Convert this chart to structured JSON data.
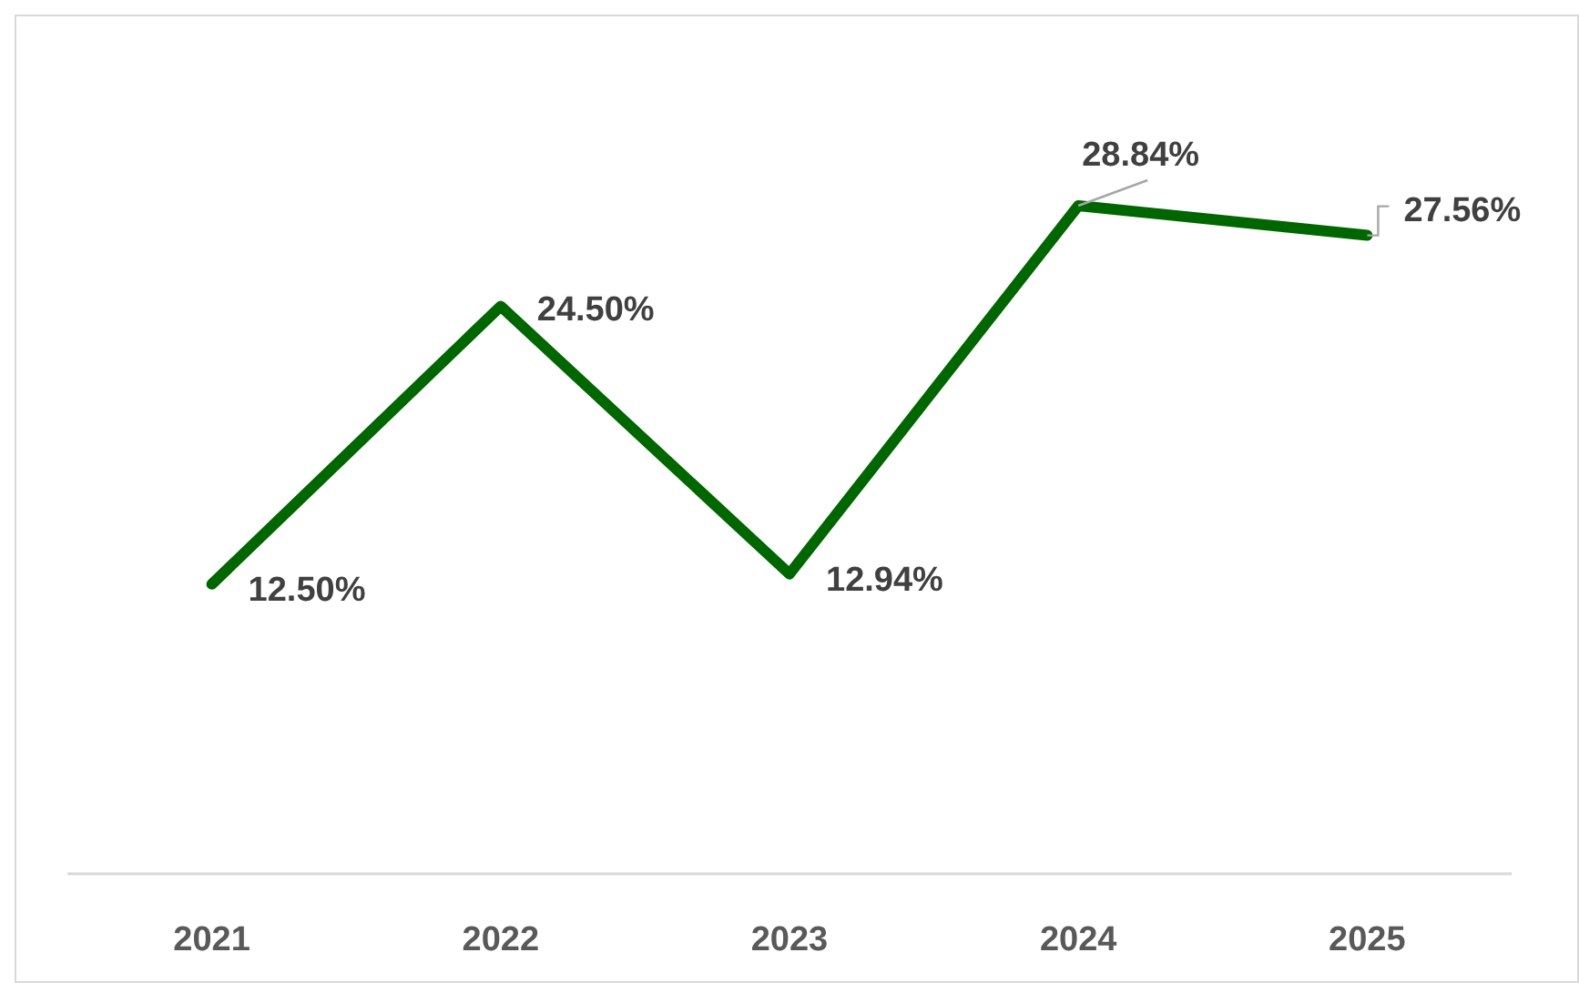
{
  "chart_data": {
    "type": "line",
    "categories": [
      "2021",
      "2022",
      "2023",
      "2024",
      "2025"
    ],
    "series": [
      {
        "color": "#006600",
        "values": [
          12.5,
          24.5,
          12.94,
          28.84,
          27.56
        ],
        "value_labels": [
          "12.50%",
          "24.50%",
          "12.94%",
          "28.84%",
          "27.56%"
        ]
      }
    ],
    "tick_labels": "x",
    "marker": "none",
    "line_style": "solid"
  }
}
